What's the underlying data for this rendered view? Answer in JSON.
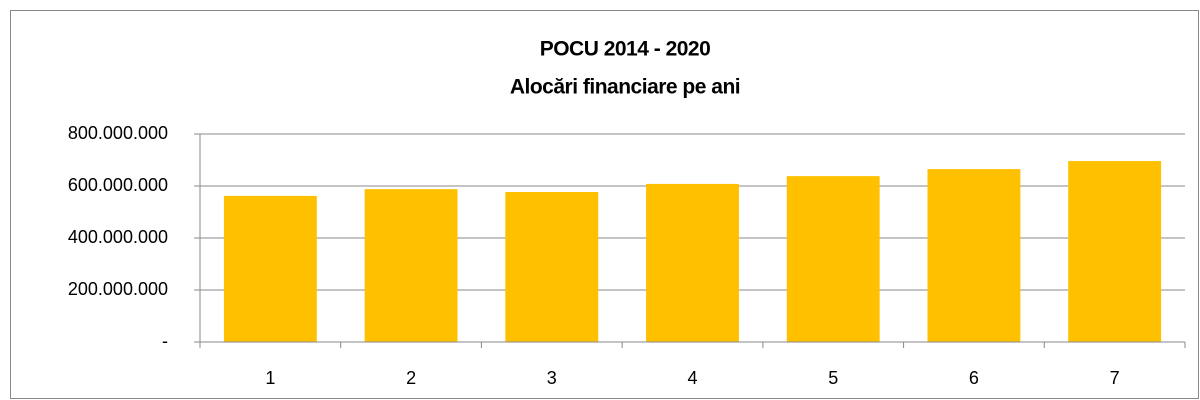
{
  "chart_data": {
    "type": "bar",
    "title": [
      "POCU 2014 - 2020",
      "Alocări financiare pe ani"
    ],
    "categories": [
      "1",
      "2",
      "3",
      "4",
      "5",
      "6",
      "7"
    ],
    "values": [
      562000000,
      588000000,
      577000000,
      608000000,
      638000000,
      665000000,
      696000000
    ],
    "color": "#ffc000",
    "ylim": [
      0,
      800000000
    ],
    "yticks": [
      {
        "value": 0,
        "label": "-"
      },
      {
        "value": 200000000,
        "label": "200.000.000"
      },
      {
        "value": 400000000,
        "label": "400.000.000"
      },
      {
        "value": 600000000,
        "label": "600.000.000"
      },
      {
        "value": 800000000,
        "label": "800.000.000"
      }
    ],
    "grid": true
  }
}
